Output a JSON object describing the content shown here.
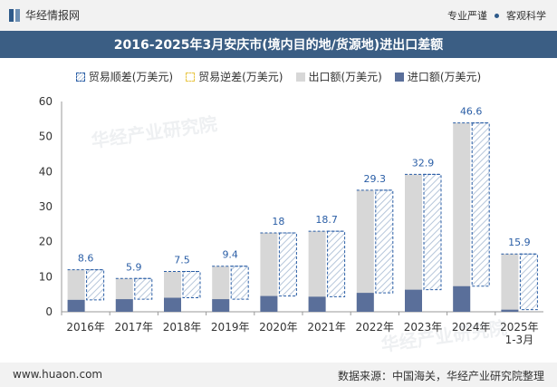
{
  "header": {
    "brand": "华经情报网",
    "tagline_left": "专业严谨",
    "tagline_right": "客观科学"
  },
  "title": "2016-2025年3月安庆市(境内目的地/货源地)进出口差额",
  "legend": {
    "surplus": "贸易顺差(万美元)",
    "deficit": "贸易逆差(万美元)",
    "export": "出口额(万美元)",
    "import": "进口额(万美元)"
  },
  "footer": {
    "url": "www.huaon.com",
    "source": "数据来源：中国海关，华经产业研究院整理"
  },
  "watermark": "华经产业研究院",
  "colors": {
    "export": "#d7d7d7",
    "import": "#5a6f9a",
    "surplus_border": "#2a5ea6",
    "surplus_hatch": "#b6c6da",
    "title_band": "#3b5e84"
  },
  "chart_data": {
    "type": "bar",
    "categories": [
      "2016年",
      "2017年",
      "2018年",
      "2019年",
      "2020年",
      "2021年",
      "2022年",
      "2023年",
      "2024年",
      "2025年\n1-3月"
    ],
    "series": [
      {
        "name": "出口额(万美元)",
        "values": [
          12,
          9.5,
          11.5,
          13,
          22.5,
          23,
          34.7,
          39.2,
          53.9,
          16.5
        ]
      },
      {
        "name": "进口额(万美元)",
        "values": [
          3.4,
          3.6,
          4.0,
          3.6,
          4.5,
          4.3,
          5.4,
          6.3,
          7.3,
          0.6
        ]
      },
      {
        "name": "贸易顺差(万美元)",
        "values": [
          8.6,
          5.9,
          7.5,
          9.4,
          18,
          18.7,
          29.3,
          32.9,
          46.6,
          15.9
        ]
      }
    ],
    "data_labels": [
      "8.6",
      "5.9",
      "7.5",
      "9.4",
      "18",
      "18.7",
      "29.3",
      "32.9",
      "46.6",
      "15.9"
    ],
    "ylim": [
      0,
      60
    ],
    "yticks": [
      0,
      10,
      20,
      30,
      40,
      50,
      60
    ],
    "grid": false,
    "legend_position": "top"
  }
}
